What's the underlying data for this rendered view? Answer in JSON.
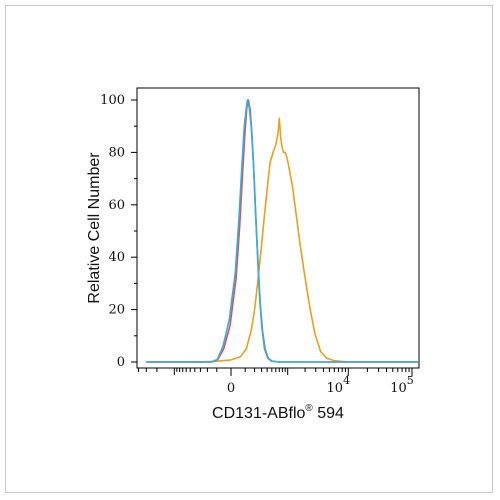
{
  "chart_data": {
    "type": "line",
    "title": "",
    "xlabel": "CD131-ABflo",
    "xlabel_superscript": "®",
    "xlabel_suffix": " 594",
    "ylabel": "Relative Cell Number",
    "ylim": [
      0,
      100
    ],
    "yticks": [
      "0",
      "20",
      "40",
      "60",
      "80",
      "100"
    ],
    "x_scale": "biexponential",
    "xticks": [
      {
        "value": 0,
        "label": "0"
      },
      {
        "value": 10000,
        "base": "10",
        "exp": "4"
      },
      {
        "value": 100000,
        "base": "10",
        "exp": "5"
      }
    ],
    "grid": false,
    "series": [
      {
        "color": "#e8a020",
        "points": [
          [
            -3000,
            0
          ],
          [
            -300,
            0
          ],
          [
            -100,
            0.3
          ],
          [
            0,
            0.8
          ],
          [
            60,
            2
          ],
          [
            110,
            5
          ],
          [
            160,
            12
          ],
          [
            200,
            20
          ],
          [
            240,
            30
          ],
          [
            290,
            42
          ],
          [
            340,
            54
          ],
          [
            400,
            66
          ],
          [
            460,
            76
          ],
          [
            530,
            80
          ],
          [
            600,
            83
          ],
          [
            660,
            87
          ],
          [
            700,
            93
          ],
          [
            740,
            86
          ],
          [
            790,
            82
          ],
          [
            840,
            80
          ],
          [
            900,
            80
          ],
          [
            970,
            78
          ],
          [
            1060,
            74
          ],
          [
            1200,
            68
          ],
          [
            1380,
            58
          ],
          [
            1620,
            46
          ],
          [
            1940,
            34
          ],
          [
            2350,
            22
          ],
          [
            2900,
            11
          ],
          [
            3600,
            4
          ],
          [
            4500,
            1.5
          ],
          [
            6000,
            0.5
          ],
          [
            10000,
            0
          ],
          [
            100000,
            0
          ],
          [
            200000,
            0
          ]
        ]
      },
      {
        "color": "#e05050",
        "points": [
          [
            -3000,
            0
          ],
          [
            -300,
            0
          ],
          [
            -150,
            0
          ],
          [
            -90,
            1
          ],
          [
            -45,
            5
          ],
          [
            -5,
            14
          ],
          [
            30,
            32
          ],
          [
            55,
            52
          ],
          [
            75,
            70
          ],
          [
            95,
            86
          ],
          [
            115,
            97
          ],
          [
            130,
            100
          ],
          [
            150,
            96
          ],
          [
            170,
            86
          ],
          [
            195,
            70
          ],
          [
            220,
            53
          ],
          [
            250,
            36
          ],
          [
            280,
            22
          ],
          [
            315,
            12
          ],
          [
            360,
            5
          ],
          [
            420,
            1.5
          ],
          [
            500,
            0.4
          ],
          [
            700,
            0
          ],
          [
            100000,
            0
          ],
          [
            200000,
            0
          ]
        ]
      },
      {
        "color": "#30b0e0",
        "points": [
          [
            -3000,
            0
          ],
          [
            -300,
            0
          ],
          [
            -150,
            0
          ],
          [
            -95,
            1
          ],
          [
            -50,
            6
          ],
          [
            -10,
            16
          ],
          [
            25,
            34
          ],
          [
            50,
            55
          ],
          [
            72,
            75
          ],
          [
            92,
            90
          ],
          [
            110,
            97
          ],
          [
            120,
            100
          ],
          [
            140,
            97
          ],
          [
            160,
            90
          ],
          [
            185,
            76
          ],
          [
            210,
            58
          ],
          [
            240,
            40
          ],
          [
            270,
            24
          ],
          [
            305,
            13
          ],
          [
            350,
            5
          ],
          [
            410,
            1.5
          ],
          [
            490,
            0.3
          ],
          [
            700,
            0
          ],
          [
            100000,
            0
          ],
          [
            200000,
            0
          ]
        ]
      }
    ]
  }
}
